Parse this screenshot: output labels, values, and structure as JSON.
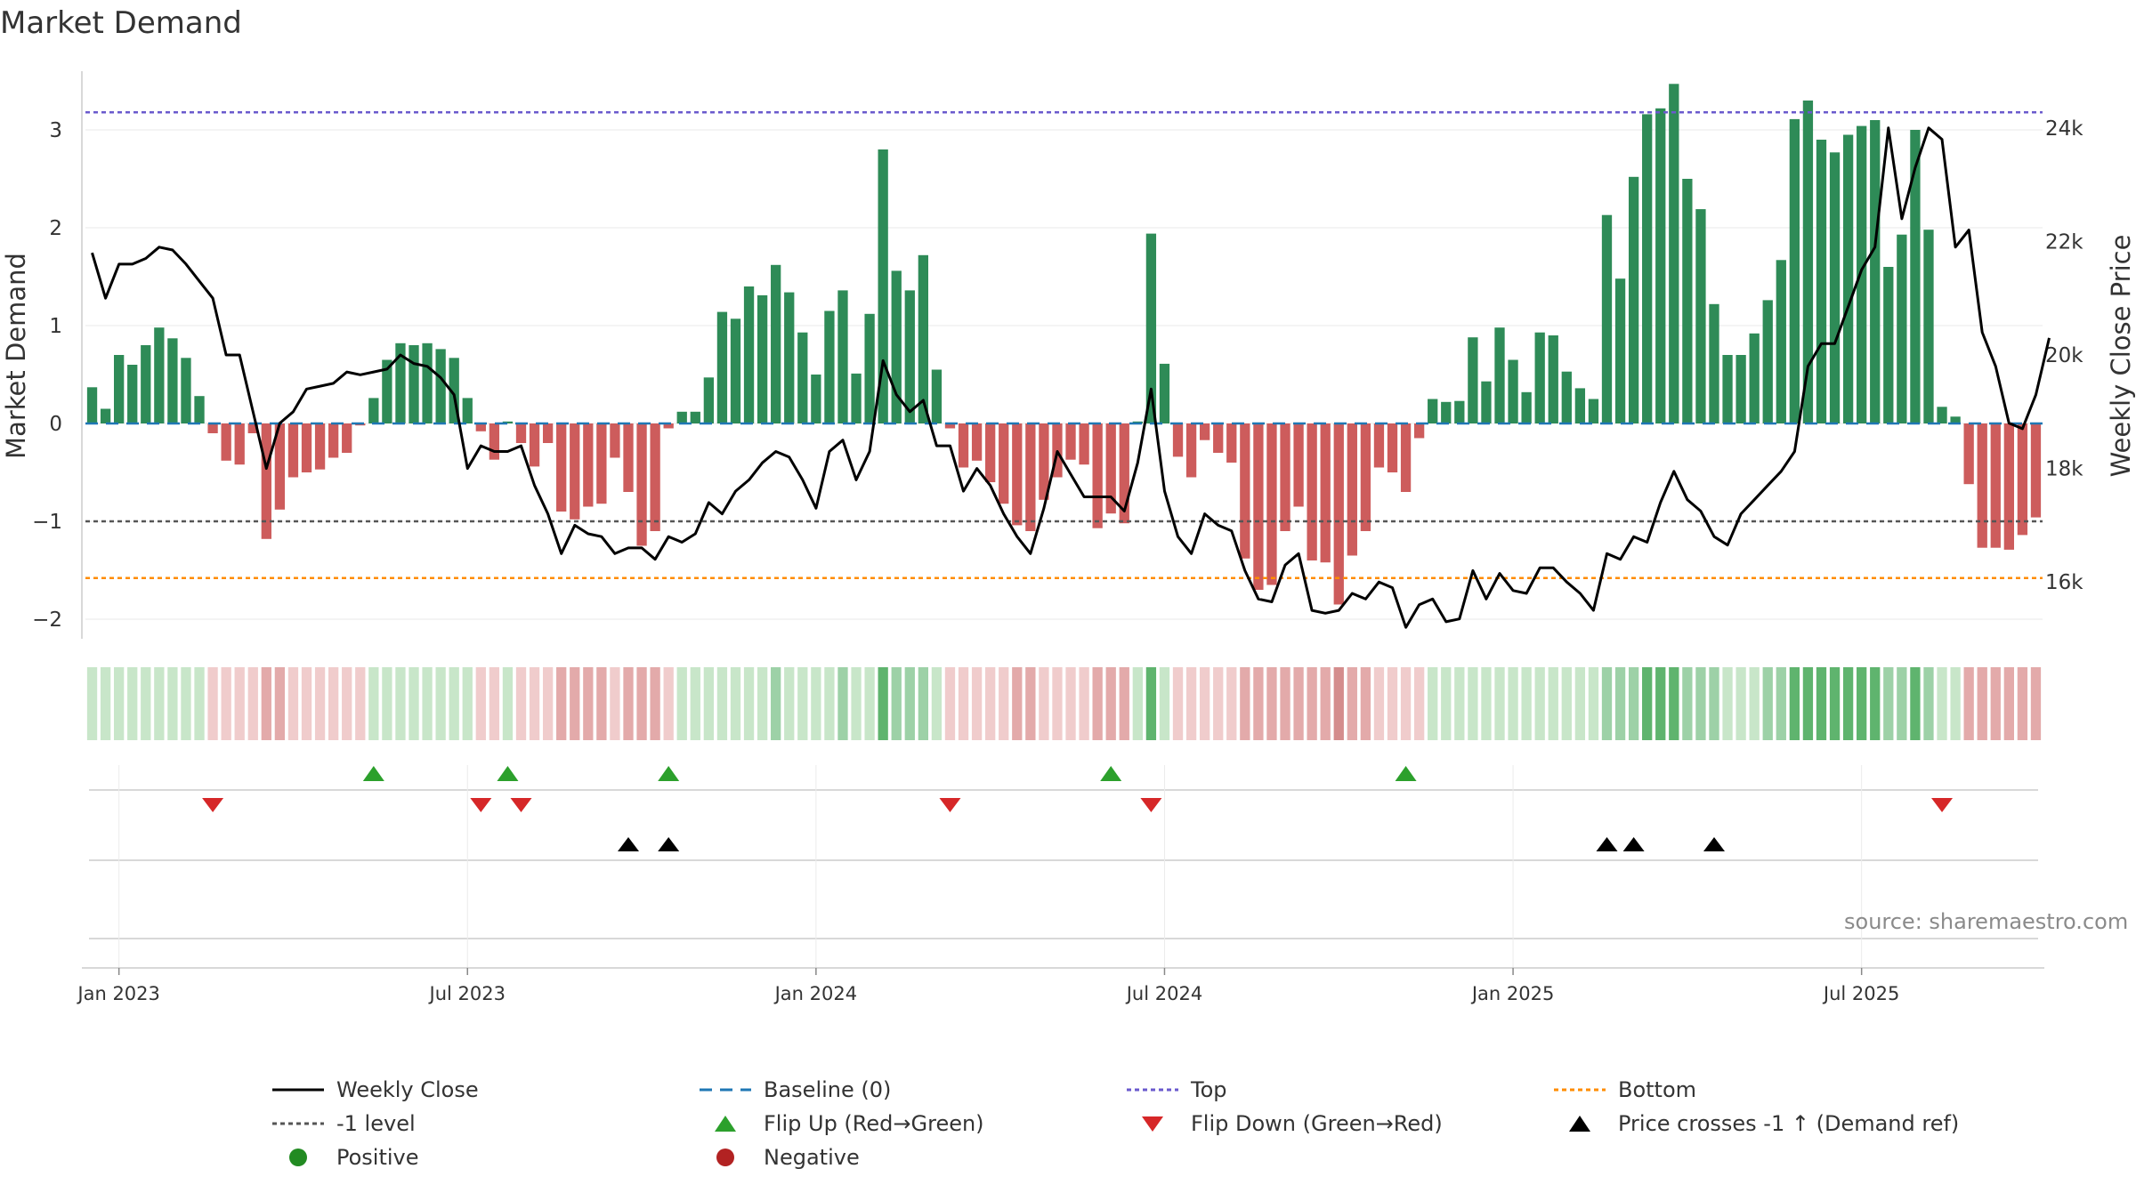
{
  "title": "Market Demand",
  "source": "source: sharemaestro.com",
  "colors": {
    "positive_bar": "#2e8b57",
    "negative_bar": "#cd5c5c",
    "line": "#000000",
    "baseline": "#1f77b4",
    "top": "#6a5acd",
    "minus1": "#555555",
    "bottom": "#ff8c00",
    "flip_up": "#2ca02c",
    "flip_down": "#d62728",
    "cross": "#000000"
  },
  "legend": [
    {
      "label": "Weekly Close",
      "symbol": "line"
    },
    {
      "label": "Baseline (0)",
      "symbol": "dashed-blue"
    },
    {
      "label": "Top",
      "symbol": "dotted-purple"
    },
    {
      "label": "Bottom",
      "symbol": "dotted-orange"
    },
    {
      "label": "-1 level",
      "symbol": "dotted-grey"
    },
    {
      "label": "Flip Up (Red→Green)",
      "symbol": "triangle-up-green"
    },
    {
      "label": "Flip Down (Green→Red)",
      "symbol": "triangle-down-red"
    },
    {
      "label": "Price crosses -1 ↑ (Demand ref)",
      "symbol": "triangle-up-black"
    },
    {
      "label": "Positive",
      "symbol": "dot-green"
    },
    {
      "label": "Negative",
      "symbol": "dot-red"
    }
  ],
  "chart_data": {
    "type": "bar",
    "title": "Market Demand",
    "ylabel": "Market Demand",
    "y2label": "Weekly Close Price",
    "ylim": [
      -2.2,
      3.6
    ],
    "y2lim": [
      15000,
      25000
    ],
    "yticks": [
      {
        "value": 3,
        "label": "3"
      },
      {
        "value": 2,
        "label": "2"
      },
      {
        "value": 1,
        "label": "1"
      },
      {
        "value": 0,
        "label": "0"
      },
      {
        "value": -1,
        "label": "−1"
      },
      {
        "value": -2,
        "label": "−2"
      }
    ],
    "y2ticks": [
      {
        "value": 24000,
        "label": "24k"
      },
      {
        "value": 22000,
        "label": "22k"
      },
      {
        "value": 20000,
        "label": "20k"
      },
      {
        "value": 18000,
        "label": "18k"
      },
      {
        "value": 16000,
        "label": "16k"
      }
    ],
    "xticks": [
      {
        "week": 2,
        "label": "Jan 2023"
      },
      {
        "week": 28,
        "label": "Jul 2023"
      },
      {
        "week": 54,
        "label": "Jan 2024"
      },
      {
        "week": 80,
        "label": "Jul 2024"
      },
      {
        "week": 106,
        "label": "Jan 2025"
      },
      {
        "week": 132,
        "label": "Jul 2025"
      }
    ],
    "reference_lines": {
      "top": 3.18,
      "minus1": -1,
      "bottom": -1.58,
      "baseline": 0
    },
    "demand": [
      0.37,
      0.15,
      0.7,
      0.6,
      0.8,
      0.98,
      0.87,
      0.67,
      0.28,
      -0.1,
      -0.38,
      -0.42,
      -0.1,
      -1.18,
      -0.88,
      -0.55,
      -0.5,
      -0.47,
      -0.35,
      -0.3,
      -0.02,
      0.26,
      0.65,
      0.82,
      0.8,
      0.82,
      0.76,
      0.67,
      0.26,
      -0.08,
      -0.37,
      0.02,
      -0.2,
      -0.44,
      -0.2,
      -0.9,
      -0.98,
      -0.85,
      -0.82,
      -0.35,
      -0.7,
      -1.25,
      -1.1,
      -0.05,
      0.12,
      0.12,
      0.47,
      1.14,
      1.07,
      1.4,
      1.31,
      1.62,
      1.34,
      0.93,
      0.5,
      1.15,
      1.36,
      0.51,
      1.12,
      2.8,
      1.56,
      1.36,
      1.72,
      0.55,
      -0.05,
      -0.45,
      -0.38,
      -0.6,
      -0.82,
      -1.04,
      -1.1,
      -0.78,
      -0.55,
      -0.37,
      -0.42,
      -1.07,
      -0.92,
      -1.02,
      0.02,
      1.94,
      0.61,
      -0.34,
      -0.55,
      -0.17,
      -0.3,
      -0.4,
      -1.38,
      -1.7,
      -1.65,
      -1.1,
      -0.85,
      -1.4,
      -1.42,
      -1.85,
      -1.35,
      -1.1,
      -0.45,
      -0.5,
      -0.7,
      -0.15,
      0.25,
      0.22,
      0.23,
      0.88,
      0.43,
      0.98,
      0.65,
      0.32,
      0.93,
      0.9,
      0.53,
      0.36,
      0.25,
      2.13,
      1.48,
      2.52,
      3.16,
      3.22,
      3.47,
      2.5,
      2.19,
      1.22,
      0.7,
      0.7,
      0.92,
      1.26,
      1.67,
      3.11,
      3.3,
      2.9,
      2.77,
      2.95,
      3.04,
      3.1,
      1.6,
      1.93,
      3.0,
      1.98,
      0.17,
      0.07,
      -0.62,
      -1.27,
      -1.27,
      -1.29,
      -1.14,
      -0.96
    ],
    "weekly_close": [
      21800,
      21000,
      21600,
      21600,
      21700,
      21900,
      21850,
      21600,
      21300,
      21000,
      20000,
      20000,
      19000,
      18000,
      18800,
      19000,
      19400,
      19450,
      19500,
      19700,
      19650,
      19700,
      19750,
      20000,
      19850,
      19800,
      19600,
      19300,
      18000,
      18400,
      18300,
      18300,
      18400,
      17700,
      17200,
      16500,
      17000,
      16850,
      16800,
      16500,
      16600,
      16600,
      16400,
      16800,
      16700,
      16850,
      17400,
      17200,
      17600,
      17800,
      18100,
      18300,
      18200,
      17800,
      17300,
      18300,
      18500,
      17800,
      18300,
      19900,
      19300,
      19000,
      19200,
      18400,
      18400,
      17600,
      18000,
      17700,
      17200,
      16800,
      16500,
      17300,
      18300,
      17900,
      17500,
      17500,
      17500,
      17250,
      18100,
      19400,
      17600,
      16800,
      16500,
      17200,
      17000,
      16900,
      16200,
      15700,
      15650,
      16300,
      16500,
      15500,
      15450,
      15500,
      15800,
      15700,
      16000,
      15900,
      15200,
      15600,
      15700,
      15300,
      15350,
      16200,
      15700,
      16150,
      15850,
      15800,
      16250,
      16250,
      16000,
      15800,
      15500,
      16500,
      16400,
      16800,
      16700,
      17400,
      17950,
      17450,
      17250,
      16800,
      16650,
      17200,
      17450,
      17700,
      17950,
      18300,
      19800,
      20200,
      20200,
      20850,
      21500,
      21900,
      24000,
      22400,
      23300,
      24000,
      23800,
      21900,
      22200,
      20400,
      19800,
      18800,
      18700,
      19300,
      20300
    ],
    "strength": [
      1,
      1,
      1,
      1,
      1,
      1,
      1,
      1,
      1,
      1,
      1,
      1,
      1,
      2,
      2,
      1,
      1,
      1,
      1,
      1,
      1,
      1,
      1,
      1,
      1,
      1,
      1,
      1,
      1,
      1,
      1,
      1,
      1,
      1,
      1,
      2,
      2,
      2,
      2,
      1,
      2,
      2,
      2,
      1,
      1,
      1,
      1,
      1,
      1,
      1,
      1,
      2,
      1,
      1,
      1,
      1,
      2,
      1,
      1,
      3,
      2,
      2,
      2,
      1,
      1,
      1,
      1,
      1,
      1,
      2,
      2,
      1,
      1,
      1,
      1,
      2,
      2,
      2,
      1,
      3,
      1,
      1,
      1,
      1,
      1,
      1,
      2,
      2,
      2,
      2,
      2,
      2,
      2,
      3,
      2,
      2,
      1,
      1,
      1,
      1,
      1,
      1,
      1,
      1,
      1,
      1,
      1,
      1,
      1,
      1,
      1,
      1,
      1,
      2,
      2,
      2,
      3,
      3,
      3,
      2,
      2,
      2,
      1,
      1,
      1,
      2,
      2,
      3,
      3,
      3,
      3,
      3,
      3,
      3,
      2,
      2,
      3,
      2,
      1,
      1,
      2,
      2,
      2,
      2,
      2,
      2
    ],
    "flip_up_weeks": [
      21,
      31,
      43,
      76,
      98
    ],
    "flip_down_weeks": [
      9,
      29,
      32,
      64,
      79,
      138
    ],
    "price_cross_weeks": [
      40,
      43,
      113,
      115,
      121
    ]
  }
}
